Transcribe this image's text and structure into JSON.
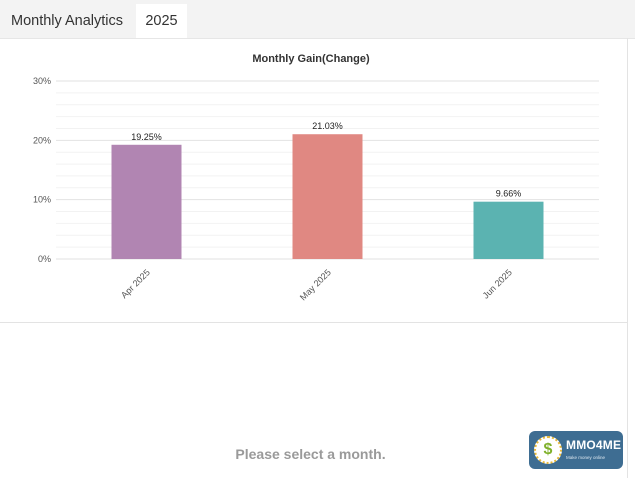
{
  "tabs": [
    {
      "label": "Monthly Analytics"
    },
    {
      "label": "2025"
    }
  ],
  "chart_data": {
    "type": "bar",
    "title": "Monthly Gain(Change)",
    "categories": [
      "Apr 2025",
      "May 2025",
      "Jun 2025"
    ],
    "values": [
      19.25,
      21.03,
      9.66
    ],
    "data_labels": [
      "19.25%",
      "21.03%",
      "9.66%"
    ],
    "colors": [
      "#b185b2",
      "#e08882",
      "#5bb3b1"
    ],
    "ylim": [
      0,
      30
    ],
    "yticks": [
      "0%",
      "10%",
      "20%",
      "30%"
    ],
    "xlabel": "",
    "ylabel": "",
    "grid": true
  },
  "empty_message": "Please select a month.",
  "logo": {
    "name": "MMO4ME",
    "tagline": "Make money online",
    "icon": "dollar-coin-icon",
    "coin_symbol": "$"
  }
}
